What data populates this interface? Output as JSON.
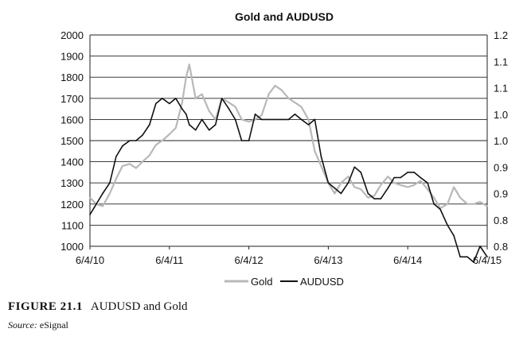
{
  "chart_data": {
    "type": "line",
    "title": "Gold and AUDUSD",
    "x_tick_labels": [
      "6/4/10",
      "6/4/11",
      "6/4/12",
      "6/4/13",
      "6/4/14",
      "6/4/15"
    ],
    "y_left_ticks": [
      "2000",
      "1900",
      "1800",
      "1700",
      "1600",
      "1500",
      "1400",
      "1300",
      "1200",
      "1100",
      "1000"
    ],
    "y_left_range": [
      1000,
      2000
    ],
    "y_right_ticks": [
      "1.2",
      "1.1",
      "1.1",
      "1.0",
      "1.0",
      "0.9",
      "0.9",
      "0.8",
      "0.8"
    ],
    "y_right_range": [
      0.8,
      1.2
    ],
    "grid": true,
    "legend_position": "bottom",
    "series": [
      {
        "name": "Gold",
        "axis": "left",
        "color": "#b8b8b8",
        "x": [
          2010.42,
          2010.5,
          2010.58,
          2010.67,
          2010.75,
          2010.83,
          2010.92,
          2011.0,
          2011.08,
          2011.17,
          2011.25,
          2011.33,
          2011.42,
          2011.5,
          2011.58,
          2011.63,
          2011.67,
          2011.75,
          2011.83,
          2011.92,
          2012.0,
          2012.08,
          2012.17,
          2012.25,
          2012.33,
          2012.42,
          2012.5,
          2012.58,
          2012.67,
          2012.75,
          2012.83,
          2012.92,
          2013.0,
          2013.08,
          2013.17,
          2013.25,
          2013.33,
          2013.42,
          2013.5,
          2013.58,
          2013.67,
          2013.75,
          2013.83,
          2013.92,
          2014.0,
          2014.08,
          2014.17,
          2014.25,
          2014.33,
          2014.42,
          2014.5,
          2014.58,
          2014.67,
          2014.75,
          2014.83,
          2014.92,
          2015.0,
          2015.08,
          2015.17,
          2015.25,
          2015.33,
          2015.42
        ],
        "values": [
          1230,
          1200,
          1190,
          1250,
          1320,
          1380,
          1390,
          1370,
          1400,
          1430,
          1480,
          1500,
          1530,
          1560,
          1680,
          1800,
          1860,
          1700,
          1720,
          1640,
          1600,
          1700,
          1680,
          1660,
          1600,
          1590,
          1600,
          1620,
          1720,
          1760,
          1740,
          1700,
          1680,
          1660,
          1600,
          1450,
          1380,
          1300,
          1250,
          1300,
          1330,
          1280,
          1270,
          1230,
          1240,
          1290,
          1330,
          1300,
          1290,
          1280,
          1290,
          1310,
          1270,
          1230,
          1180,
          1200,
          1280,
          1230,
          1200,
          1200,
          1210,
          1190
        ]
      },
      {
        "name": "AUDUSD",
        "axis": "right",
        "color": "#111111",
        "x": [
          2010.42,
          2010.5,
          2010.58,
          2010.67,
          2010.75,
          2010.83,
          2010.92,
          2011.0,
          2011.08,
          2011.17,
          2011.25,
          2011.33,
          2011.42,
          2011.5,
          2011.58,
          2011.63,
          2011.67,
          2011.75,
          2011.83,
          2011.92,
          2012.0,
          2012.08,
          2012.17,
          2012.25,
          2012.33,
          2012.42,
          2012.5,
          2012.58,
          2012.67,
          2012.75,
          2012.83,
          2012.92,
          2013.0,
          2013.08,
          2013.17,
          2013.25,
          2013.33,
          2013.42,
          2013.5,
          2013.58,
          2013.67,
          2013.75,
          2013.83,
          2013.92,
          2014.0,
          2014.08,
          2014.17,
          2014.25,
          2014.33,
          2014.42,
          2014.5,
          2014.58,
          2014.67,
          2014.75,
          2014.83,
          2014.92,
          2015.0,
          2015.08,
          2015.17,
          2015.25,
          2015.33,
          2015.42
        ],
        "values": [
          0.86,
          0.88,
          0.9,
          0.92,
          0.97,
          0.99,
          1.0,
          1.0,
          1.01,
          1.03,
          1.07,
          1.08,
          1.07,
          1.08,
          1.06,
          1.05,
          1.03,
          1.02,
          1.04,
          1.02,
          1.03,
          1.08,
          1.06,
          1.04,
          1.0,
          1.0,
          1.05,
          1.04,
          1.04,
          1.04,
          1.04,
          1.04,
          1.05,
          1.04,
          1.03,
          1.04,
          0.97,
          0.92,
          0.91,
          0.9,
          0.92,
          0.95,
          0.94,
          0.9,
          0.89,
          0.89,
          0.91,
          0.93,
          0.93,
          0.94,
          0.94,
          0.93,
          0.92,
          0.88,
          0.87,
          0.84,
          0.82,
          0.78,
          0.78,
          0.77,
          0.8,
          0.78
        ]
      }
    ]
  },
  "caption": {
    "figure_number": "FIGURE 21.1",
    "figure_title": "AUDUSD and Gold",
    "source_label": "Source:",
    "source_value": "eSignal"
  }
}
